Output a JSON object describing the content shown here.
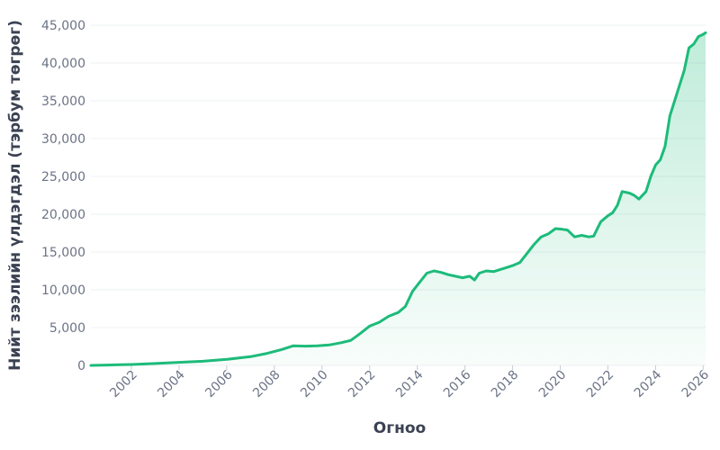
{
  "chart_data": {
    "type": "area",
    "title": "",
    "xlabel": "Огноо",
    "ylabel": "Нийт зээлийн үлдэгдэл (тэрбум төгрөг)",
    "xlim": [
      2000.3,
      2026.1
    ],
    "ylim": [
      0,
      45000
    ],
    "x_ticks": [
      "2002",
      "2004",
      "2006",
      "2008",
      "2010",
      "2012",
      "2014",
      "2016",
      "2018",
      "2020",
      "2022",
      "2024",
      "2026"
    ],
    "y_ticks": [
      "0",
      "5,000",
      "10,000",
      "15,000",
      "20,000",
      "25,000",
      "30,000",
      "35,000",
      "40,000",
      "45,000"
    ],
    "grid": true,
    "colors": {
      "line": "#1dbb7a",
      "fill_top": "#1dbb7a",
      "fill_bottom": "#ffffff"
    },
    "series": [
      {
        "x": [
          2000.3,
          2001.0,
          2002.0,
          2003.0,
          2004.0,
          2005.0,
          2006.0,
          2007.0,
          2007.7,
          2008.3,
          2008.8,
          2009.3,
          2009.8,
          2010.3,
          2010.8,
          2011.2,
          2011.6,
          2012.0,
          2012.4,
          2012.8,
          2013.2,
          2013.5,
          2013.8,
          2014.1,
          2014.4,
          2014.7,
          2015.0,
          2015.3,
          2015.6,
          2015.9,
          2016.2,
          2016.4,
          2016.6,
          2016.9,
          2017.2,
          2017.5,
          2017.8,
          2018.0,
          2018.3,
          2018.6,
          2018.9,
          2019.2,
          2019.5,
          2019.8,
          2020.1,
          2020.3,
          2020.6,
          2020.9,
          2021.2,
          2021.4,
          2021.7,
          2022.0,
          2022.2,
          2022.4,
          2022.6,
          2022.9,
          2023.1,
          2023.3,
          2023.6,
          2023.8,
          2024.0,
          2024.2,
          2024.4,
          2024.6,
          2024.8,
          2025.0,
          2025.2,
          2025.4,
          2025.6,
          2025.8,
          2026.0,
          2026.1
        ],
        "values": [
          0,
          50,
          120,
          250,
          400,
          550,
          800,
          1150,
          1600,
          2100,
          2600,
          2550,
          2600,
          2700,
          3000,
          3300,
          4200,
          5200,
          5700,
          6500,
          7000,
          7800,
          9800,
          11000,
          12200,
          12500,
          12300,
          12000,
          11800,
          11600,
          11800,
          11300,
          12200,
          12500,
          12400,
          12700,
          13000,
          13200,
          13600,
          14800,
          16000,
          17000,
          17400,
          18100,
          18000,
          17900,
          17000,
          17200,
          17000,
          17100,
          19000,
          19800,
          20200,
          21200,
          23000,
          22800,
          22500,
          22000,
          23000,
          25000,
          26500,
          27200,
          29000,
          33000,
          35000,
          37000,
          39000,
          42000,
          42500,
          43500,
          43800,
          44000
        ]
      }
    ]
  }
}
